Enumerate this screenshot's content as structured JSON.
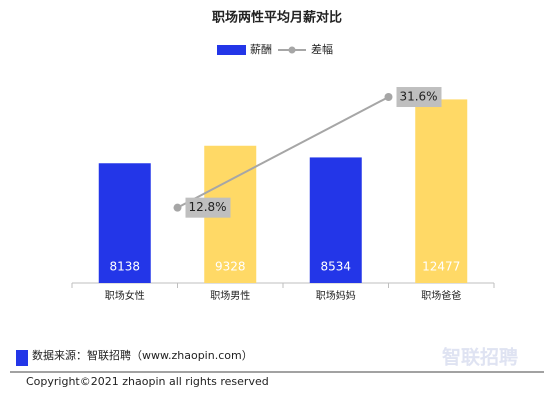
{
  "chart_data": {
    "type": "bar",
    "title": "职场两性平均月薪对比",
    "categories": [
      "职场女性",
      "职场男性",
      "职场妈妈",
      "职场爸爸"
    ],
    "ylim": [
      0,
      14000
    ],
    "y2lim": [
      0,
      35
    ],
    "series": [
      {
        "name": "薪酬",
        "type": "bar",
        "color": "#2336e8",
        "colors": [
          "#2336e8",
          "#ffd966",
          "#2336e8",
          "#ffd966"
        ],
        "values": [
          8138,
          9328,
          8534,
          12477
        ]
      },
      {
        "name": "差幅",
        "type": "line",
        "axis": "y2",
        "color": "#a6a6a6",
        "values": [
          null,
          12.8,
          null,
          31.6
        ],
        "value_labels": [
          null,
          "12.8%",
          null,
          "31.6%"
        ]
      }
    ],
    "source": "数据来源：智联招聘（www.zhaopin.com）",
    "copyright": "Copyright©2021 zhaopin all rights reserved",
    "watermark": "智联招聘"
  }
}
